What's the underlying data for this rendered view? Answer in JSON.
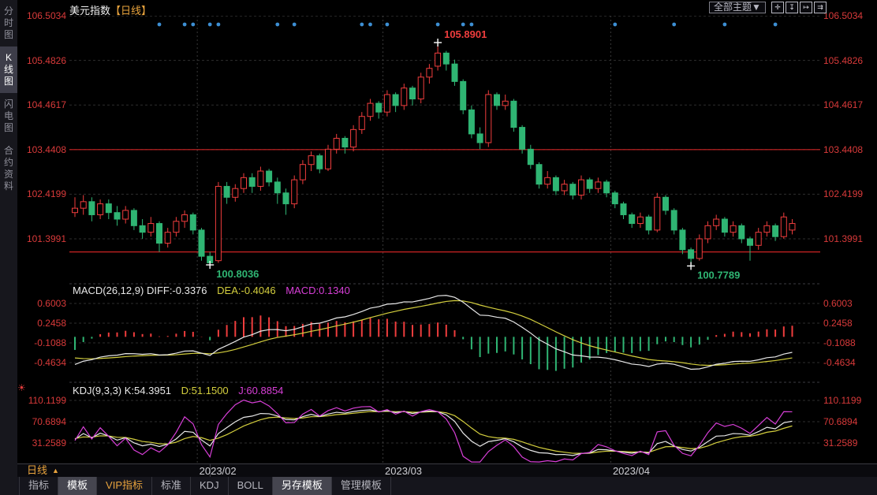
{
  "sidebar": {
    "items": [
      {
        "label": "分时图",
        "selected": false
      },
      {
        "label": "K线图",
        "selected": true
      },
      {
        "label": "闪电图",
        "selected": false
      },
      {
        "label": "合约资料",
        "selected": false
      }
    ]
  },
  "header": {
    "title": "美元指数",
    "period_tag": "【日线】",
    "theme_label": "全部主题",
    "theme_arrow": "▼",
    "tool_icons": [
      {
        "name": "crosshair-icon",
        "glyph": "✛"
      },
      {
        "name": "fit-left-axis-icon",
        "glyph": "↧"
      },
      {
        "name": "fit-right-axis-icon",
        "glyph": "↦"
      },
      {
        "name": "pan-right-icon",
        "glyph": "⇉"
      }
    ]
  },
  "macd_header": {
    "name": "MACD(26,12,9)",
    "diff_label": "DIFF:-0.3376",
    "dea_label": "DEA:-0.4046",
    "macd_label": "MACD:0.1340"
  },
  "kdj_header": {
    "name": "KDJ(9,3,3)",
    "k_label": "K:54.3951",
    "d_label": "D:51.1500",
    "j_label": "J:60.8854"
  },
  "xaxis": {
    "period_label": "日线",
    "period_arrow": "▲"
  },
  "tabs": [
    {
      "label": "指标",
      "style": "normal"
    },
    {
      "label": "模板",
      "style": "selected"
    },
    {
      "label": "VIP指标",
      "style": "vip"
    },
    {
      "label": "标准",
      "style": "normal"
    },
    {
      "label": "KDJ",
      "style": "normal"
    },
    {
      "label": "BOLL",
      "style": "normal"
    },
    {
      "label": "另存模板",
      "style": "selected"
    },
    {
      "label": "管理模板",
      "style": "normal"
    }
  ],
  "chart_data": {
    "type": "candlestick",
    "title": "美元指数【日线】",
    "price_axis": [
      106.5034,
      105.4826,
      104.4617,
      103.4408,
      102.4199,
      101.3991
    ],
    "macd_axis": [
      0.6003,
      0.2458,
      -0.1088,
      -0.4634
    ],
    "kdj_axis": [
      110.1199,
      70.6894,
      31.2589
    ],
    "month_labels": [
      "2023/02",
      "2023/03",
      "2023/04"
    ],
    "month_line_indices": [
      15,
      37,
      64
    ],
    "hline_prices": [
      103.4408,
      101.1
    ],
    "event_dot_indices": [
      10,
      13,
      14,
      16,
      17,
      24,
      26,
      34,
      35,
      37,
      43,
      46,
      47,
      64,
      71,
      77,
      83
    ],
    "markers": {
      "high": {
        "index": 43,
        "label": "105.8901"
      },
      "lows": [
        {
          "index": 16,
          "label": "100.8036"
        },
        {
          "index": 73,
          "label": "100.7789"
        }
      ]
    },
    "macd_values": {
      "diff": -0.3376,
      "dea": -0.4046,
      "macd": 0.134
    },
    "kdj_values": {
      "k": 54.3951,
      "d": 51.15,
      "j": 60.8854
    },
    "macd_seed": {
      "ema12": 101.95,
      "ema26": 102.5,
      "dea": -0.35
    },
    "kdj_seed": {
      "k": 35,
      "d": 40
    },
    "colors": {
      "up": "#ef3d3d",
      "down": "#2fb573",
      "diff": "#e8e8e8",
      "dea": "#d4cf3e",
      "jline": "#d83fd8",
      "axis_text": "#d93a3a",
      "grid": "#2e2e2e",
      "grid_top": "#4a4a4a",
      "month_grid": "#383838",
      "divider": "#3c3c42",
      "alert_line": "#cc2424",
      "event_dot": "#3d8fd4",
      "marker_cross": "#ffffff",
      "high_label": "#ef3d3d",
      "low_label": "#2fb573"
    },
    "candles": [
      [
        102.0,
        102.35,
        101.9,
        102.1
      ],
      [
        102.1,
        102.4,
        101.95,
        102.25
      ],
      [
        102.25,
        102.35,
        101.8,
        101.95
      ],
      [
        101.95,
        102.3,
        101.85,
        102.2
      ],
      [
        102.2,
        102.3,
        101.85,
        102.0
      ],
      [
        102.0,
        102.15,
        101.7,
        101.85
      ],
      [
        101.85,
        102.15,
        101.75,
        102.05
      ],
      [
        102.05,
        102.1,
        101.6,
        101.7
      ],
      [
        101.7,
        101.85,
        101.4,
        101.55
      ],
      [
        101.55,
        101.9,
        101.45,
        101.75
      ],
      [
        101.75,
        101.8,
        101.1,
        101.3
      ],
      [
        101.3,
        101.65,
        101.2,
        101.55
      ],
      [
        101.55,
        101.9,
        101.45,
        101.8
      ],
      [
        101.8,
        102.05,
        101.65,
        101.95
      ],
      [
        101.95,
        102.0,
        101.5,
        101.6
      ],
      [
        101.6,
        101.65,
        100.9,
        101.0
      ],
      [
        101.0,
        101.1,
        100.8036,
        100.85
      ],
      [
        100.9,
        102.7,
        100.85,
        102.6
      ],
      [
        102.6,
        102.7,
        102.2,
        102.35
      ],
      [
        102.35,
        102.65,
        102.25,
        102.55
      ],
      [
        102.55,
        102.9,
        102.45,
        102.8
      ],
      [
        102.8,
        102.9,
        102.45,
        102.6
      ],
      [
        102.6,
        103.05,
        102.5,
        102.95
      ],
      [
        102.95,
        103.0,
        102.6,
        102.7
      ],
      [
        102.7,
        102.8,
        102.2,
        102.45
      ],
      [
        102.45,
        102.55,
        101.95,
        102.2
      ],
      [
        102.2,
        102.85,
        102.1,
        102.75
      ],
      [
        102.75,
        103.2,
        102.65,
        103.1
      ],
      [
        103.1,
        103.4,
        102.95,
        103.3
      ],
      [
        103.3,
        103.35,
        102.9,
        103.0
      ],
      [
        103.0,
        103.55,
        102.95,
        103.45
      ],
      [
        103.45,
        103.8,
        103.35,
        103.7
      ],
      [
        103.7,
        103.75,
        103.35,
        103.5
      ],
      [
        103.5,
        104.0,
        103.4,
        103.9
      ],
      [
        103.9,
        104.3,
        103.8,
        104.2
      ],
      [
        104.2,
        104.6,
        104.1,
        104.5
      ],
      [
        104.5,
        104.55,
        104.15,
        104.3
      ],
      [
        104.3,
        104.8,
        104.2,
        104.7
      ],
      [
        104.7,
        104.75,
        104.3,
        104.45
      ],
      [
        104.45,
        104.95,
        104.35,
        104.85
      ],
      [
        104.85,
        104.9,
        104.45,
        104.6
      ],
      [
        104.6,
        105.2,
        104.5,
        105.1
      ],
      [
        105.1,
        105.4,
        104.95,
        105.3
      ],
      [
        105.35,
        105.8901,
        105.25,
        105.65
      ],
      [
        105.65,
        105.7,
        105.25,
        105.4
      ],
      [
        105.4,
        105.5,
        104.9,
        105.0
      ],
      [
        105.0,
        105.05,
        104.25,
        104.35
      ],
      [
        104.35,
        104.45,
        103.7,
        103.8
      ],
      [
        103.8,
        103.95,
        103.45,
        103.6
      ],
      [
        103.6,
        104.8,
        103.5,
        104.7
      ],
      [
        104.7,
        104.75,
        104.35,
        104.45
      ],
      [
        104.45,
        104.7,
        104.35,
        104.55
      ],
      [
        104.55,
        104.6,
        103.85,
        103.95
      ],
      [
        103.95,
        104.0,
        103.35,
        103.45
      ],
      [
        103.45,
        103.55,
        103.0,
        103.1
      ],
      [
        103.1,
        103.15,
        102.55,
        102.65
      ],
      [
        102.65,
        102.95,
        102.55,
        102.8
      ],
      [
        102.8,
        102.85,
        102.4,
        102.5
      ],
      [
        102.5,
        102.75,
        102.4,
        102.65
      ],
      [
        102.65,
        102.7,
        102.3,
        102.4
      ],
      [
        102.4,
        102.85,
        102.3,
        102.75
      ],
      [
        102.75,
        102.8,
        102.45,
        102.55
      ],
      [
        102.55,
        102.8,
        102.45,
        102.7
      ],
      [
        102.7,
        102.75,
        102.35,
        102.45
      ],
      [
        102.45,
        102.5,
        102.1,
        102.2
      ],
      [
        102.2,
        102.25,
        101.85,
        101.95
      ],
      [
        101.95,
        102.0,
        101.65,
        101.75
      ],
      [
        101.75,
        102.0,
        101.65,
        101.9
      ],
      [
        101.9,
        101.95,
        101.5,
        101.6
      ],
      [
        101.6,
        102.45,
        101.55,
        102.35
      ],
      [
        102.35,
        102.4,
        101.95,
        102.05
      ],
      [
        102.05,
        102.1,
        101.5,
        101.6
      ],
      [
        101.6,
        101.65,
        101.05,
        101.15
      ],
      [
        101.15,
        101.2,
        100.7789,
        100.95
      ],
      [
        100.95,
        101.5,
        100.9,
        101.4
      ],
      [
        101.4,
        101.8,
        101.3,
        101.7
      ],
      [
        101.7,
        101.95,
        101.6,
        101.85
      ],
      [
        101.85,
        101.9,
        101.45,
        101.55
      ],
      [
        101.55,
        101.8,
        101.45,
        101.7
      ],
      [
        101.7,
        101.75,
        101.3,
        101.4
      ],
      [
        101.4,
        101.45,
        100.9,
        101.25
      ],
      [
        101.25,
        101.65,
        101.15,
        101.55
      ],
      [
        101.55,
        101.8,
        101.45,
        101.7
      ],
      [
        101.7,
        101.75,
        101.35,
        101.45
      ],
      [
        101.45,
        102.0,
        101.4,
        101.9
      ],
      [
        101.6,
        101.85,
        101.5,
        101.75
      ]
    ]
  }
}
